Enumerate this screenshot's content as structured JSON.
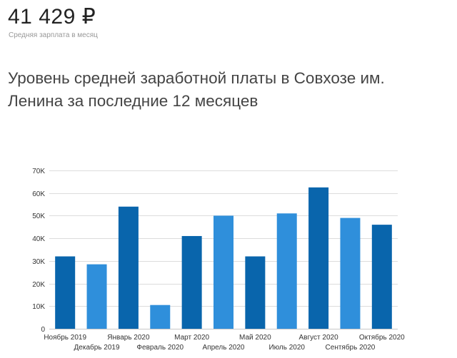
{
  "summary": {
    "value": "41 429 ₽",
    "caption": "Средняя зарплата в месяц"
  },
  "heading": "Уровень средней заработной платы в Совхозе им. Ленина за последние 12 месяцев",
  "colors": {
    "bar_dark": "#0965ac",
    "bar_light": "#2f8fdb",
    "grid": "#dcdcdc",
    "axis": "#c8c8c8"
  },
  "chart_data": {
    "type": "bar",
    "title": "",
    "xlabel": "",
    "ylabel": "",
    "ylim": [
      0,
      70000
    ],
    "yticks": [
      0,
      10000,
      20000,
      30000,
      40000,
      50000,
      60000,
      70000
    ],
    "ytick_labels": [
      "0",
      "10K",
      "20K",
      "30K",
      "40K",
      "50K",
      "60K",
      "70K"
    ],
    "grid": true,
    "categories": [
      "Ноябрь 2019",
      "Декабрь 2019",
      "Январь 2020",
      "Февраль 2020",
      "Март 2020",
      "Апрель 2020",
      "Май 2020",
      "Июль 2020",
      "Август 2020",
      "Сентябрь 2020",
      "Октябрь 2020"
    ],
    "values": [
      32000,
      28500,
      54000,
      10500,
      41000,
      50000,
      32000,
      51000,
      62500,
      49000,
      46000
    ]
  }
}
